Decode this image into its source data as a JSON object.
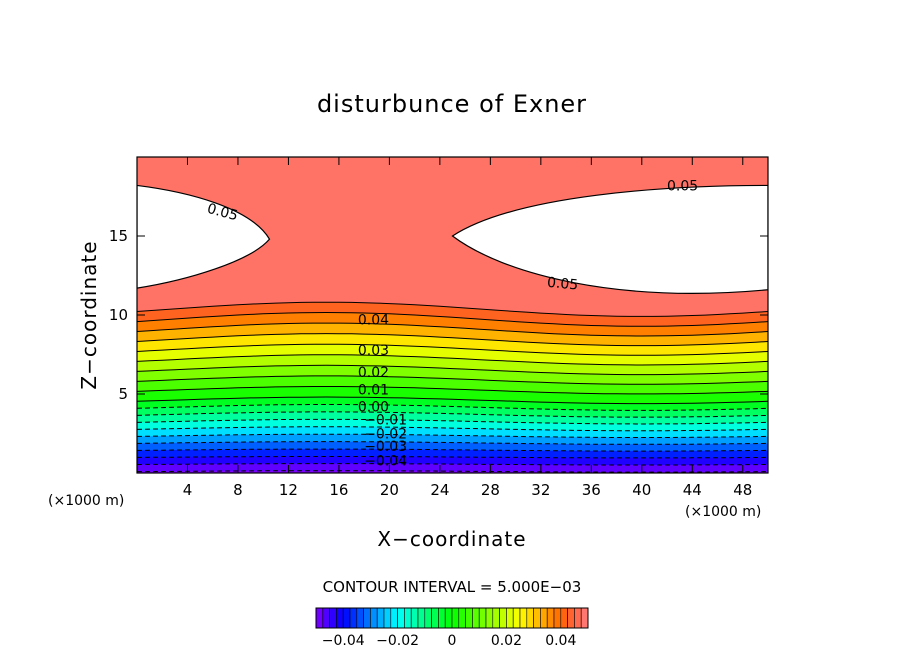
{
  "chart_data": {
    "type": "contour",
    "title": "disturbunce of Exner",
    "xlabel": "X−coordinate",
    "ylabel": "Z−coordinate",
    "x_unit_left": "(×1000 m)",
    "x_unit_right": "(×1000 m)",
    "xlim": [
      0,
      50
    ],
    "ylim": [
      0,
      20
    ],
    "x_ticks": [
      "4",
      "8",
      "12",
      "16",
      "20",
      "24",
      "28",
      "32",
      "36",
      "40",
      "44",
      "48"
    ],
    "y_ticks": [
      "5",
      "10",
      "15"
    ],
    "contour_interval_text": "CONTOUR INTERVAL = 5.000E−03",
    "contour_labels": [
      "0.05",
      "0.05",
      "0.05",
      "0.04",
      "0.03",
      "0.02",
      "0.01",
      "0.00",
      "−0.01",
      "−0.02",
      "−0.03",
      "−0.04"
    ],
    "colorbar": {
      "range": [
        -0.05,
        0.05
      ],
      "tick_labels": [
        "−0.04",
        "−0.02",
        "0",
        "0.02",
        "0.04"
      ],
      "tick_values": [
        -0.04,
        -0.02,
        0,
        0.02,
        0.04
      ]
    },
    "field_description": "Exner perturbation increasing with height from about -0.05 at the surface to above 0.05 aloft; values above 0.05 left blank (white) in two lobes near z 12-18 at x 0-11 and x 26-50",
    "grid": false,
    "legend": "colorbar-bottom"
  }
}
